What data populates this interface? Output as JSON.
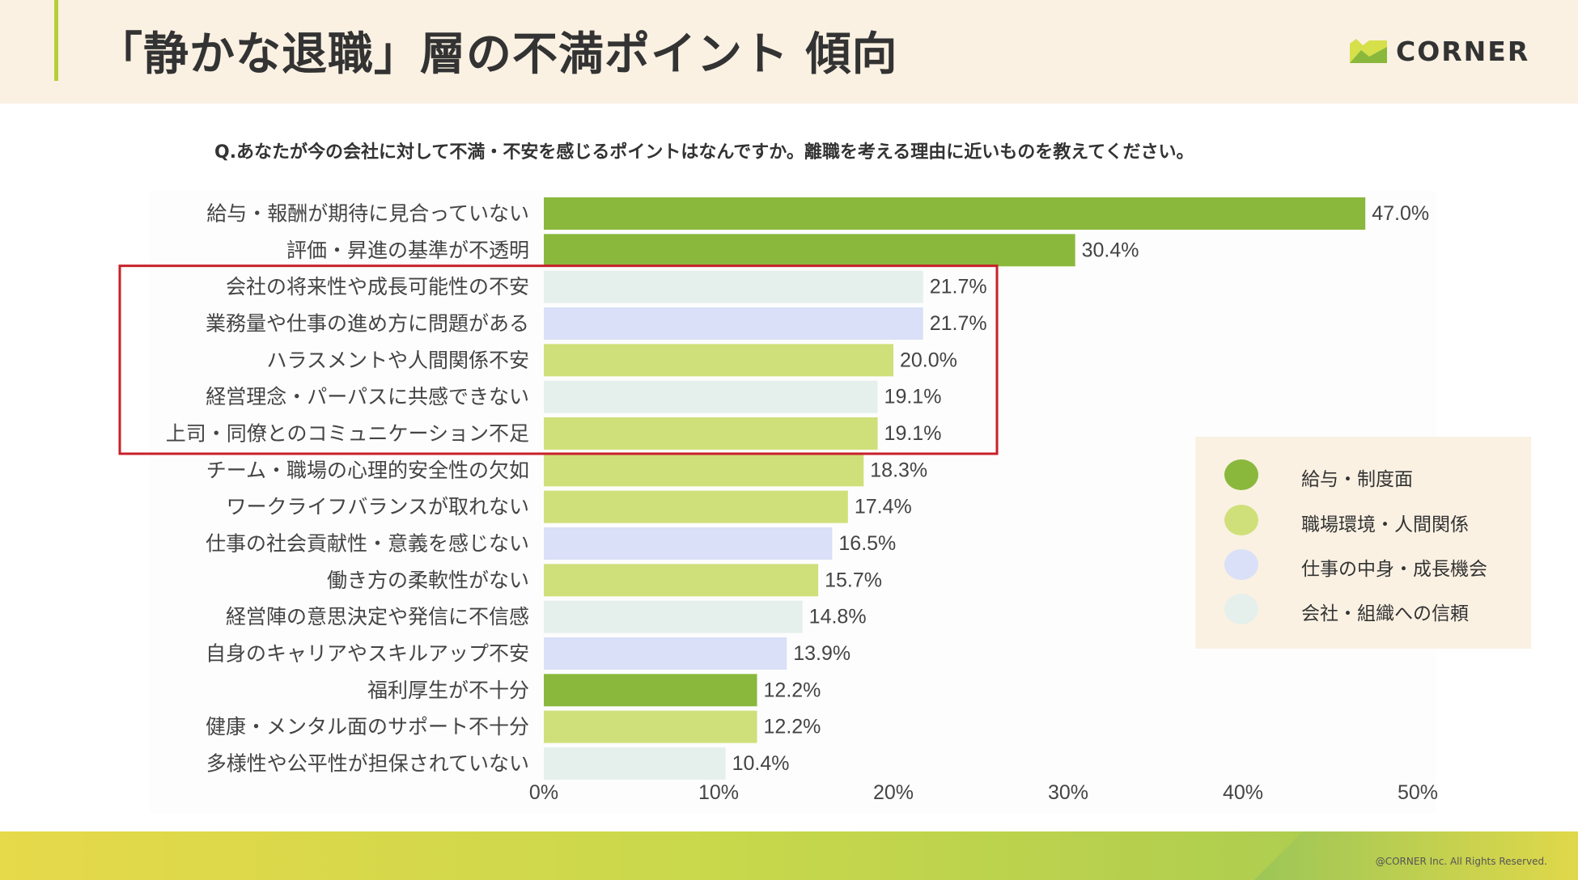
{
  "header": {
    "title": "「静かな退職」層の不満ポイント 傾向",
    "logo_text": "CORNER"
  },
  "question": "Q.あなたが今の会社に対して不満・不安を感じるポイントはなんですか。離職を考える理由に近いものを教えてください。",
  "colors": {
    "給与・制度面": "#8ab83c",
    "職場環境・人間関係": "#cfe07a",
    "仕事の中身・成長機会": "#d9e0f7",
    "会社・組織への信頼": "#e5f0ec",
    "highlight_box": "#c8202a",
    "accent": "#b5cf3a"
  },
  "chart_data": {
    "type": "bar",
    "orientation": "horizontal",
    "categories": [
      "給与・報酬が期待に見合っていない",
      "評価・昇進の基準が不透明",
      "会社の将来性や成長可能性の不安",
      "業務量や仕事の進め方に問題がある",
      "ハラスメントや人間関係不安",
      "経営理念・パーパスに共感できない",
      "上司・同僚とのコミュニケーション不足",
      "チーム・職場の心理的安全性の欠如",
      "ワークライフバランスが取れない",
      "仕事の社会貢献性・意義を感じない",
      "働き方の柔軟性がない",
      "経営陣の意思決定や発信に不信感",
      "自身のキャリアやスキルアップ不安",
      "福利厚生が不十分",
      "健康・メンタル面のサポート不十分",
      "多様性や公平性が担保されていない"
    ],
    "values": [
      47.0,
      30.4,
      21.7,
      21.7,
      20.0,
      19.1,
      19.1,
      18.3,
      17.4,
      16.5,
      15.7,
      14.8,
      13.9,
      12.2,
      12.2,
      10.4
    ],
    "value_labels": [
      "47.0%",
      "30.4%",
      "21.7%",
      "21.7%",
      "20.0%",
      "19.1%",
      "19.1%",
      "18.3%",
      "17.4%",
      "16.5%",
      "15.7%",
      "14.8%",
      "13.9%",
      "12.2%",
      "12.2%",
      "10.4%"
    ],
    "groups": [
      "給与・制度面",
      "給与・制度面",
      "会社・組織への信頼",
      "仕事の中身・成長機会",
      "職場環境・人間関係",
      "会社・組織への信頼",
      "職場環境・人間関係",
      "職場環境・人間関係",
      "職場環境・人間関係",
      "仕事の中身・成長機会",
      "職場環境・人間関係",
      "会社・組織への信頼",
      "仕事の中身・成長機会",
      "給与・制度面",
      "職場環境・人間関係",
      "会社・組織への信頼"
    ],
    "xlim": [
      0,
      50
    ],
    "xticks": [
      "0%",
      "10%",
      "20%",
      "30%",
      "40%",
      "50%"
    ],
    "highlight_range": [
      2,
      6
    ],
    "legend": {
      "position": "bottom-right",
      "items": [
        "給与・制度面",
        "職場環境・人間関係",
        "仕事の中身・成長機会",
        "会社・組織への信頼"
      ]
    },
    "grid": false
  },
  "footer": {
    "copyright": "@CORNER Inc. All Rights Reserved."
  }
}
